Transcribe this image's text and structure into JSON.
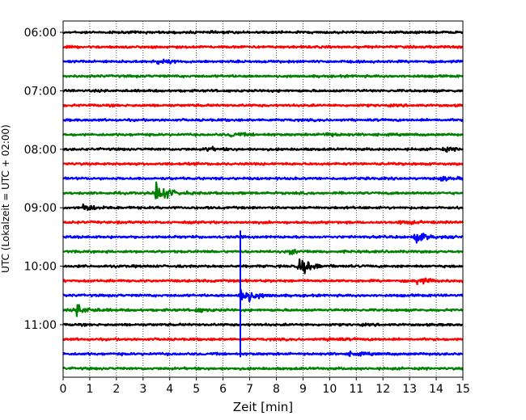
{
  "chart_data": {
    "type": "line",
    "xlabel": "Zeit  [min]",
    "ylabel": "UTC (Lokalzeit = UTC + 02:00)",
    "xlim": [
      0,
      15
    ],
    "x_ticks": [
      0,
      1,
      2,
      3,
      4,
      5,
      6,
      7,
      8,
      9,
      10,
      11,
      12,
      13,
      14,
      15
    ],
    "y_tick_labels": [
      "06:00",
      "07:00",
      "08:00",
      "09:00",
      "10:00",
      "11:00"
    ],
    "trace_start": "06:00",
    "trace_interval_min": 15,
    "trace_count": 24,
    "trace_colors": [
      "#000000",
      "#ff0000",
      "#0000ff",
      "#008000"
    ],
    "grid": {
      "vertical_dotted": true,
      "horizontal": false
    },
    "events": [
      {
        "trace": 2,
        "time_min": 3.5,
        "amplitude": 0.4
      },
      {
        "trace": 7,
        "time_min": 6.3,
        "amplitude": 0.3
      },
      {
        "trace": 7,
        "time_min": 9.8,
        "amplitude": 0.3
      },
      {
        "trace": 8,
        "time_min": 5.4,
        "amplitude": 0.25
      },
      {
        "trace": 8,
        "time_min": 14.3,
        "amplitude": 0.25
      },
      {
        "trace": 10,
        "time_min": 14.2,
        "amplitude": 0.25
      },
      {
        "trace": 11,
        "time_min": 3.5,
        "amplitude": 1.8
      },
      {
        "trace": 12,
        "time_min": 0.8,
        "amplitude": 0.5
      },
      {
        "trace": 13,
        "time_min": 12.7,
        "amplitude": 0.3
      },
      {
        "trace": 14,
        "time_min": 13.2,
        "amplitude": 0.8
      },
      {
        "trace": 15,
        "time_min": 8.5,
        "amplitude": 0.3
      },
      {
        "trace": 16,
        "time_min": 8.9,
        "amplitude": 1.3
      },
      {
        "trace": 17,
        "time_min": 13.3,
        "amplitude": 0.5
      },
      {
        "trace": 18,
        "time_min": 6.7,
        "amplitude": 1.6
      },
      {
        "trace": 19,
        "time_min": 0.5,
        "amplitude": 0.9
      },
      {
        "trace": 19,
        "time_min": 5.0,
        "amplitude": 0.3
      },
      {
        "trace": 21,
        "time_min": 10.0,
        "amplitude": 0.25
      },
      {
        "trace": 22,
        "time_min": 10.8,
        "amplitude": 0.25
      }
    ],
    "spike": {
      "time_min": 6.65,
      "from_trace": 14,
      "to_trace": 22
    }
  }
}
